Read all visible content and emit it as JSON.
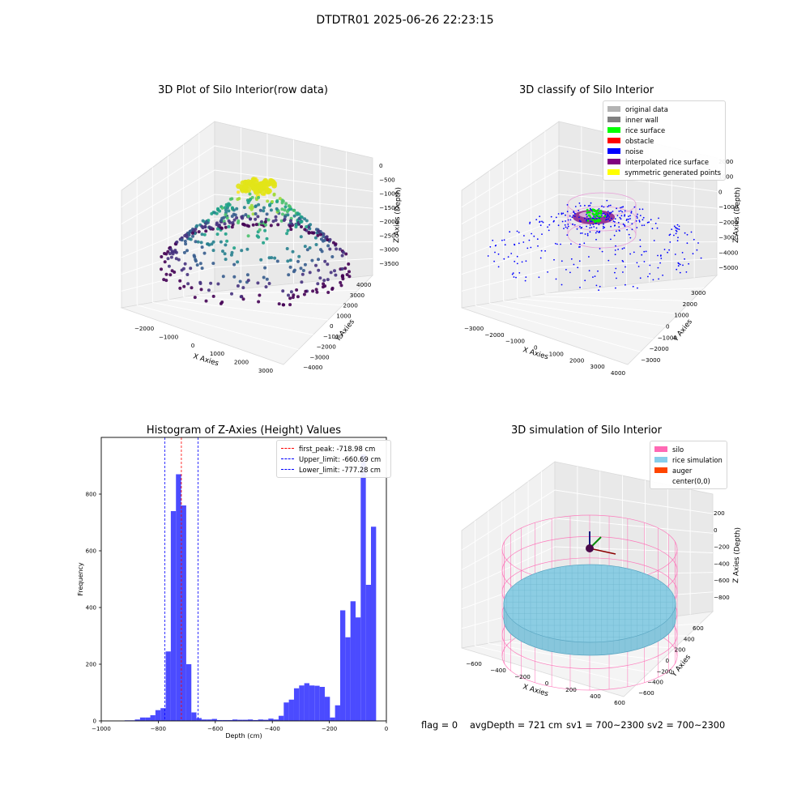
{
  "suptitle": "DTDTR01 2025-06-26 22:23:15",
  "panels": {
    "raw": {
      "title": "3D Plot of Silo Interior(row data)",
      "xlabel": "X Axies",
      "ylabel": "Y Axies",
      "zlabel": "Z Axies (Depth)",
      "xticks": [
        "−2000",
        "−1000",
        "0",
        "1000",
        "2000",
        "3000"
      ],
      "yticks": [
        "−4000",
        "−3000",
        "−2000",
        "−1000",
        "0",
        "1000",
        "2000",
        "3000",
        "4000"
      ],
      "zticks": [
        "0",
        "−500",
        "−1000",
        "−1500",
        "−2000",
        "−2500",
        "−3000",
        "−3500"
      ]
    },
    "classify": {
      "title": "3D classify of Silo Interior",
      "xlabel": "X Axies",
      "ylabel": "Y Axies",
      "zlabel": "Z Axies (Depth)",
      "xticks": [
        "−3000",
        "−2000",
        "−1000",
        "0",
        "1000",
        "2000",
        "3000",
        "4000"
      ],
      "yticks": [
        "−3000",
        "−2000",
        "−1000",
        "0",
        "1000",
        "2000",
        "3000"
      ],
      "zticks": [
        "2000",
        "1000",
        "0",
        "−1000",
        "−2000",
        "−3000",
        "−4000",
        "−5000"
      ],
      "legend": [
        {
          "label": "original data",
          "color": "#b3b3b3"
        },
        {
          "label": "inner wall",
          "color": "#808080"
        },
        {
          "label": "rice surface",
          "color": "#00ff00"
        },
        {
          "label": "obstacle",
          "color": "#ff0000"
        },
        {
          "label": "noise",
          "color": "#0000ff"
        },
        {
          "label": "interpolated rice surface",
          "color": "#800080"
        },
        {
          "label": "symmetric generated points",
          "color": "#ffff00"
        }
      ]
    },
    "simulation": {
      "title": "3D simulation of Silo Interior",
      "xlabel": "X Axies",
      "ylabel": "Y Axies",
      "zlabel": "Z Axies (Depth)",
      "xticks": [
        "−600",
        "−400",
        "−200",
        "0",
        "200",
        "400",
        "600"
      ],
      "yticks": [
        "−600",
        "−400",
        "−200",
        "0",
        "200",
        "400",
        "600"
      ],
      "zticks": [
        "200",
        "0",
        "−200",
        "−400",
        "−600",
        "−800"
      ],
      "legend": [
        {
          "label": "silo",
          "color": "#ff69b4"
        },
        {
          "label": "rice simulation",
          "color": "#87ceeb"
        },
        {
          "label": "auger",
          "color": "#ff4500"
        },
        {
          "label": "center(0,0)",
          "color": ""
        }
      ]
    }
  },
  "footer": {
    "flag": "flag = 0",
    "avg": "avgDepth = 721 cm",
    "sv1": "sv1 = 700~2300",
    "sv2": "sv2 = 700~2300"
  },
  "chart_data": {
    "type": "bar",
    "title": "Histogram of Z-Axies (Height) Values",
    "xlabel": "Depth (cm)",
    "ylabel": "Frequency",
    "xlim": [
      -1000,
      0
    ],
    "ylim": [
      0,
      1000
    ],
    "xticks": [
      -1000,
      -800,
      -600,
      -400,
      -200,
      0
    ],
    "yticks": [
      0,
      200,
      400,
      600,
      800
    ],
    "bar_color": "#4b4bff",
    "bins": [
      {
        "x0": -918,
        "x1": -900,
        "value": 2
      },
      {
        "x0": -900,
        "x1": -882,
        "value": 2
      },
      {
        "x0": -882,
        "x1": -864,
        "value": 5
      },
      {
        "x0": -864,
        "x1": -846,
        "value": 12
      },
      {
        "x0": -846,
        "x1": -828,
        "value": 12
      },
      {
        "x0": -828,
        "x1": -810,
        "value": 20
      },
      {
        "x0": -810,
        "x1": -792,
        "value": 38
      },
      {
        "x0": -792,
        "x1": -774,
        "value": 45
      },
      {
        "x0": -774,
        "x1": -756,
        "value": 245
      },
      {
        "x0": -756,
        "x1": -738,
        "value": 740
      },
      {
        "x0": -738,
        "x1": -720,
        "value": 870
      },
      {
        "x0": -720,
        "x1": -702,
        "value": 760
      },
      {
        "x0": -702,
        "x1": -684,
        "value": 200
      },
      {
        "x0": -684,
        "x1": -666,
        "value": 30
      },
      {
        "x0": -666,
        "x1": -648,
        "value": 10
      },
      {
        "x0": -648,
        "x1": -630,
        "value": 5
      },
      {
        "x0": -630,
        "x1": -612,
        "value": 5
      },
      {
        "x0": -612,
        "x1": -594,
        "value": 7
      },
      {
        "x0": -594,
        "x1": -576,
        "value": 3
      },
      {
        "x0": -576,
        "x1": -558,
        "value": 3
      },
      {
        "x0": -558,
        "x1": -540,
        "value": 3
      },
      {
        "x0": -540,
        "x1": -522,
        "value": 5
      },
      {
        "x0": -522,
        "x1": -504,
        "value": 4
      },
      {
        "x0": -504,
        "x1": -486,
        "value": 4
      },
      {
        "x0": -486,
        "x1": -468,
        "value": 5
      },
      {
        "x0": -468,
        "x1": -450,
        "value": 3
      },
      {
        "x0": -450,
        "x1": -432,
        "value": 5
      },
      {
        "x0": -432,
        "x1": -414,
        "value": 4
      },
      {
        "x0": -414,
        "x1": -396,
        "value": 8
      },
      {
        "x0": -396,
        "x1": -378,
        "value": 5
      },
      {
        "x0": -378,
        "x1": -360,
        "value": 18
      },
      {
        "x0": -360,
        "x1": -342,
        "value": 65
      },
      {
        "x0": -342,
        "x1": -324,
        "value": 75
      },
      {
        "x0": -324,
        "x1": -306,
        "value": 115
      },
      {
        "x0": -306,
        "x1": -288,
        "value": 125
      },
      {
        "x0": -288,
        "x1": -270,
        "value": 133
      },
      {
        "x0": -270,
        "x1": -252,
        "value": 125
      },
      {
        "x0": -252,
        "x1": -234,
        "value": 124
      },
      {
        "x0": -234,
        "x1": -216,
        "value": 120
      },
      {
        "x0": -216,
        "x1": -198,
        "value": 85
      },
      {
        "x0": -198,
        "x1": -180,
        "value": 12
      },
      {
        "x0": -180,
        "x1": -162,
        "value": 55
      },
      {
        "x0": -162,
        "x1": -144,
        "value": 390
      },
      {
        "x0": -144,
        "x1": -126,
        "value": 295
      },
      {
        "x0": -126,
        "x1": -108,
        "value": 422
      },
      {
        "x0": -108,
        "x1": -90,
        "value": 365
      },
      {
        "x0": -90,
        "x1": -72,
        "value": 940
      },
      {
        "x0": -72,
        "x1": -54,
        "value": 480
      },
      {
        "x0": -54,
        "x1": -36,
        "value": 685
      }
    ],
    "vlines": [
      {
        "label": "first_peak: -718.98 cm",
        "x": -718.98,
        "color": "#ff0000"
      },
      {
        "label": "Upper_limit: -660.69 cm",
        "x": -660.69,
        "color": "#0000ff"
      },
      {
        "label": "Lower_limit: -777.28 cm",
        "x": -777.28,
        "color": "#0000ff"
      }
    ]
  }
}
